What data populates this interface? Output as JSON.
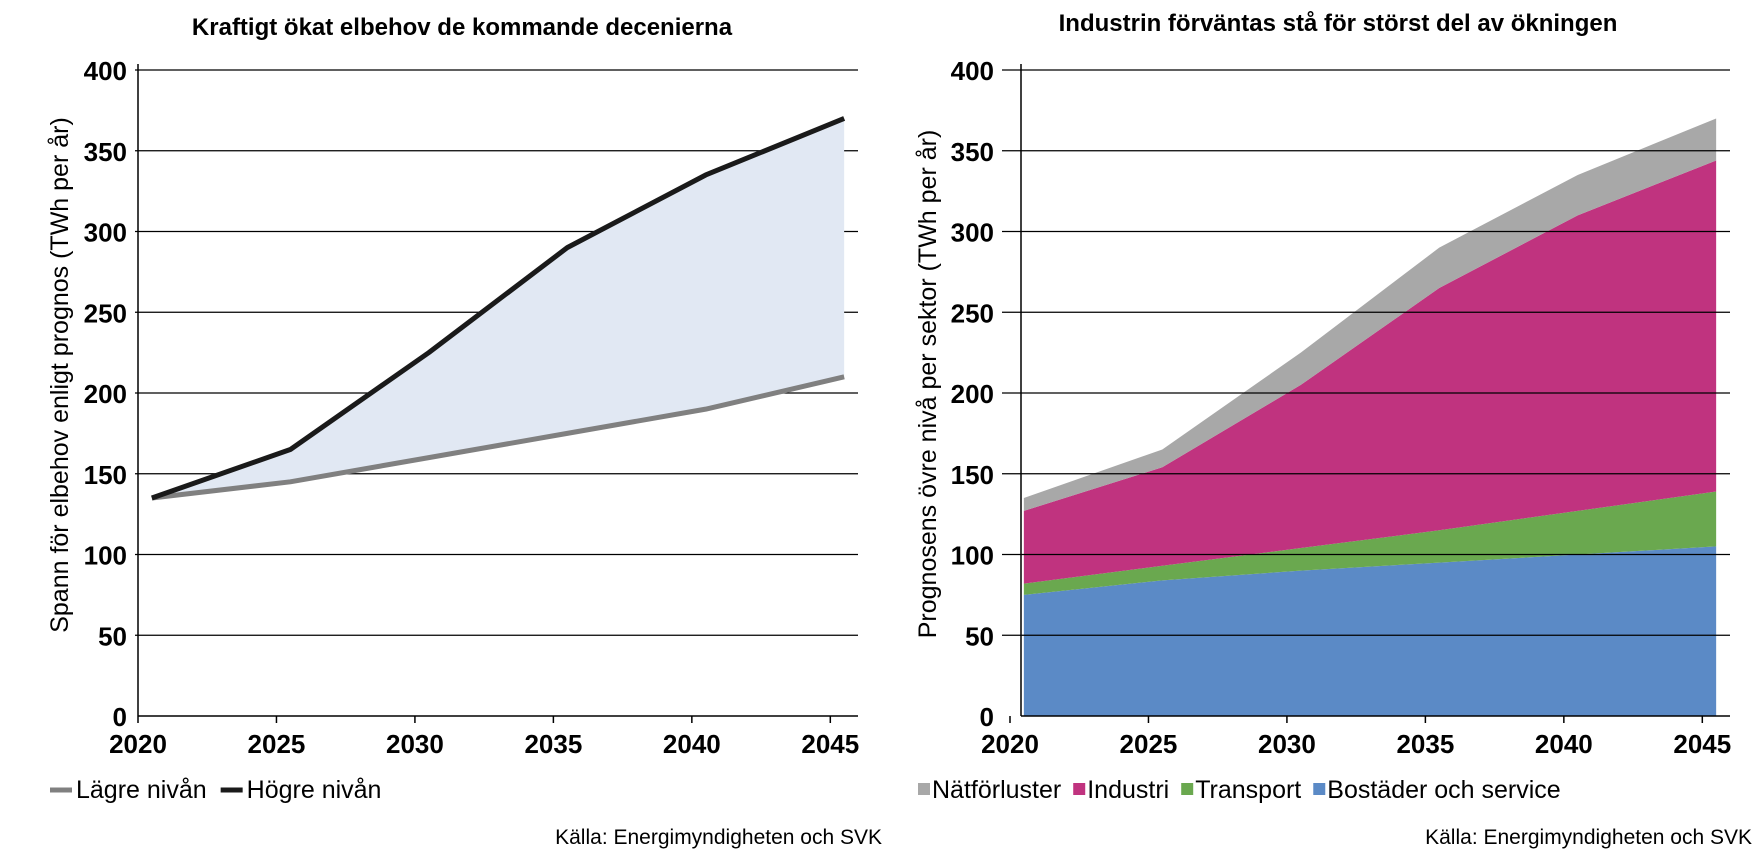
{
  "chart_data": [
    {
      "type": "line",
      "title": "Kraftigt ökat elbehov de kommande decenierna",
      "ylabel": "Spann för elbehov enligt prognos (TWh per år)",
      "xlabel": "",
      "x": [
        2020.5,
        2025.5,
        2030.5,
        2035.5,
        2040.5,
        2045.5
      ],
      "xticks": [
        2020,
        2025,
        2030,
        2035,
        2040,
        2045
      ],
      "yticks": [
        0,
        50,
        100,
        150,
        200,
        250,
        300,
        350,
        400
      ],
      "xlim": [
        2020,
        2046
      ],
      "ylim": [
        0,
        400
      ],
      "grid": true,
      "band_fill": "#e1e8f3",
      "series": [
        {
          "name": "Lägre nivån",
          "color": "#808080",
          "values": [
            135,
            145,
            160,
            175,
            190,
            210
          ]
        },
        {
          "name": "Högre nivån",
          "color": "#1a1a1a",
          "values": [
            135,
            165,
            225,
            290,
            335,
            370
          ]
        }
      ],
      "source": "Källa: Energimyndigheten och SVK"
    },
    {
      "type": "area",
      "stacked": true,
      "title": "Industrin förväntas stå för störst del av ökningen",
      "ylabel": "Prognosens övre nivå per sektor (TWh per år)",
      "xlabel": "",
      "x": [
        2020.5,
        2025.5,
        2030.5,
        2035.5,
        2040.5,
        2045.5
      ],
      "xticks": [
        2020,
        2025,
        2030,
        2035,
        2040,
        2045
      ],
      "yticks": [
        0,
        50,
        100,
        150,
        200,
        250,
        300,
        350,
        400
      ],
      "xlim": [
        2020,
        2046
      ],
      "ylim": [
        0,
        400
      ],
      "grid": true,
      "series": [
        {
          "name": "Bostäder och service",
          "color": "#5b8ac6",
          "values": [
            75,
            84,
            90,
            95,
            100,
            105
          ]
        },
        {
          "name": "Transport",
          "color": "#6aa84f",
          "values": [
            7,
            9,
            14,
            20,
            27,
            34
          ]
        },
        {
          "name": "Industri",
          "color": "#c0337f",
          "values": [
            45,
            61,
            101,
            150,
            183,
            205
          ]
        },
        {
          "name": "Nätförluster",
          "color": "#a8a8a8",
          "values": [
            8,
            11,
            20,
            25,
            25,
            26
          ]
        }
      ],
      "legend_order": [
        "Nätförluster",
        "Industri",
        "Transport",
        "Bostäder och service"
      ],
      "source": "Källa: Energimyndigheten och SVK"
    }
  ]
}
